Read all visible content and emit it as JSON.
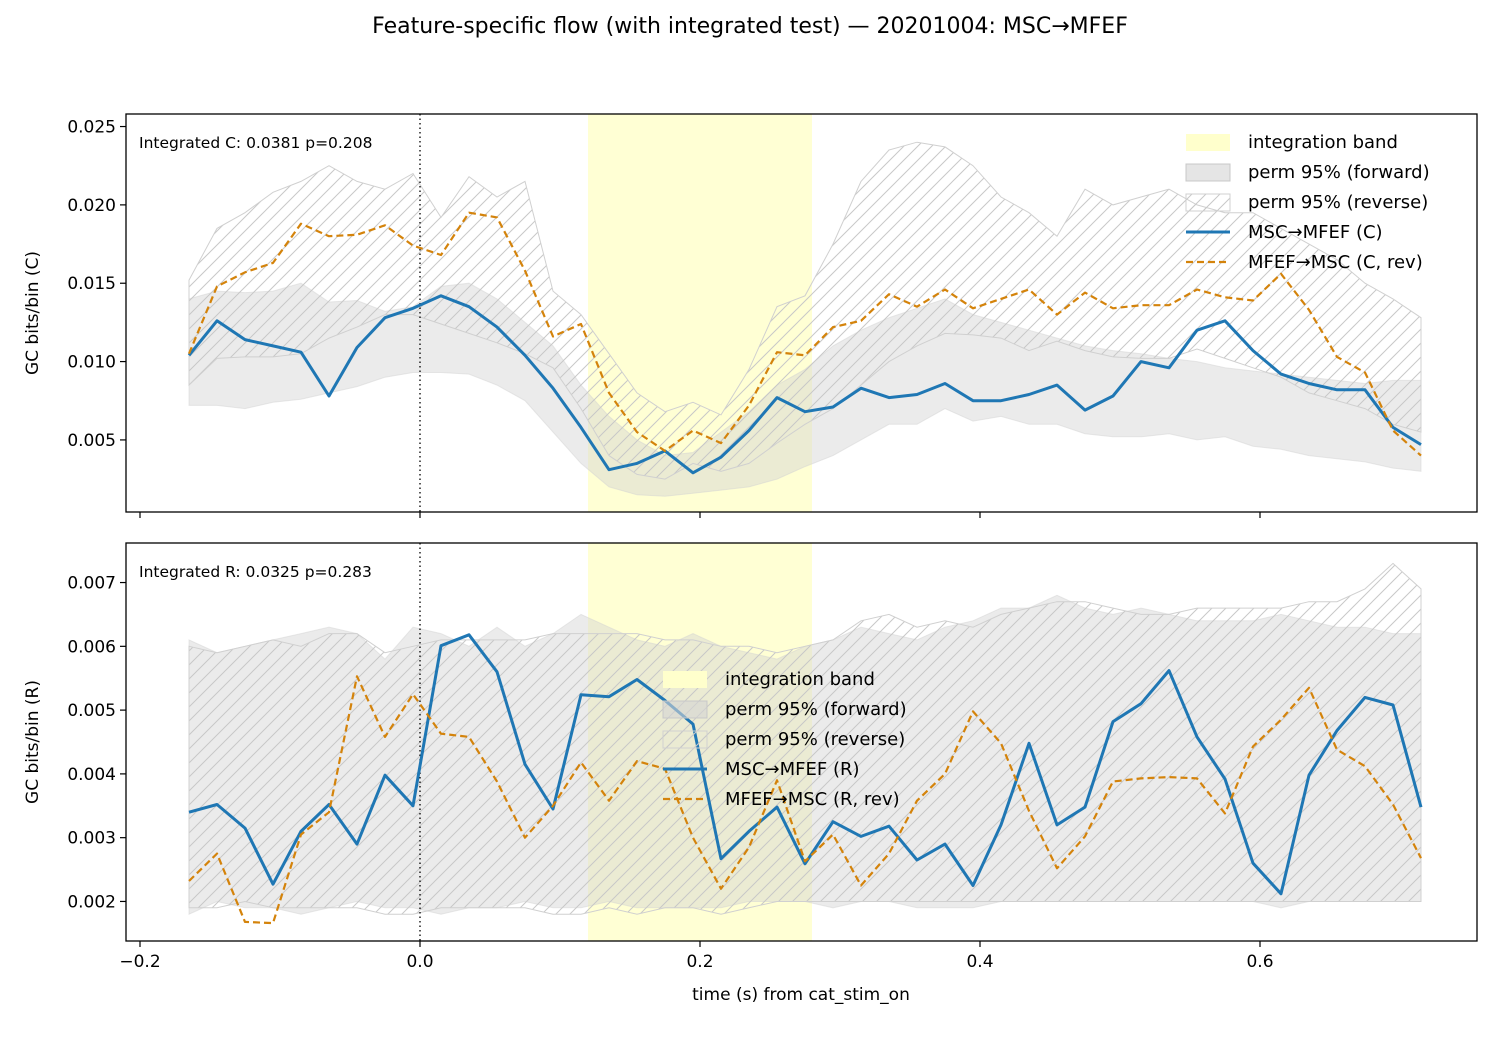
{
  "figure": {
    "title": "Feature-specific flow (with integrated test) — 20201004: MSC→MFEF",
    "xlabel": "time (s) from cat_stim_on"
  },
  "colors": {
    "forward_line": "#1f77b4",
    "reverse_line": "#d4830b",
    "integration_band": "#ffffcc",
    "perm_forward_fill": "#d3d3d3",
    "perm_reverse_hatch": "#c8c8c8"
  },
  "chart_data": [
    {
      "type": "line",
      "ylabel": "GC bits/bin (C)",
      "annotation": "Integrated C: 0.0381  p=0.208",
      "xlim": [
        -0.21,
        0.755
      ],
      "ylim": [
        0.0004,
        0.0258
      ],
      "xticks": [
        -0.2,
        0.0,
        0.2,
        0.4,
        0.6
      ],
      "xtick_labels": [],
      "yticks": [
        0.005,
        0.01,
        0.015,
        0.02,
        0.025
      ],
      "ytick_labels": [
        "0.005",
        "0.010",
        "0.015",
        "0.020",
        "0.025"
      ],
      "event_line_x": 0.0,
      "integration_band": [
        0.12,
        0.28
      ],
      "legend_position": "top-right",
      "legend": [
        "integration band",
        "perm 95% (forward)",
        "perm 95% (reverse)",
        "MSC→MFEF (C)",
        "MFEF→MSC (C, rev)"
      ],
      "x": [
        -0.165,
        -0.145,
        -0.125,
        -0.105,
        -0.085,
        -0.065,
        -0.045,
        -0.025,
        -0.005,
        0.015,
        0.035,
        0.055,
        0.075,
        0.095,
        0.115,
        0.135,
        0.155,
        0.175,
        0.195,
        0.215,
        0.235,
        0.255,
        0.275,
        0.295,
        0.315,
        0.335,
        0.355,
        0.375,
        0.395,
        0.415,
        0.435,
        0.455,
        0.475,
        0.495,
        0.515,
        0.535,
        0.555,
        0.575,
        0.595,
        0.615,
        0.635,
        0.655,
        0.675,
        0.695,
        0.715
      ],
      "series": [
        {
          "name": "MSC→MFEF (C)",
          "values": [
            0.0104,
            0.0126,
            0.0114,
            0.011,
            0.0106,
            0.0078,
            0.0109,
            0.0128,
            0.0134,
            0.0142,
            0.0135,
            0.0122,
            0.0104,
            0.0083,
            0.0058,
            0.0031,
            0.0035,
            0.0043,
            0.0029,
            0.0039,
            0.0056,
            0.0077,
            0.0068,
            0.0071,
            0.0083,
            0.0077,
            0.0079,
            0.0086,
            0.0075,
            0.0075,
            0.0079,
            0.0085,
            0.0069,
            0.0078,
            0.01,
            0.0096,
            0.012,
            0.0126,
            0.0107,
            0.0092,
            0.0086,
            0.0082,
            0.0082,
            0.0058,
            0.0047
          ]
        },
        {
          "name": "MFEF→MSC (C, rev)",
          "values": [
            0.0105,
            0.0148,
            0.0157,
            0.0163,
            0.0188,
            0.018,
            0.0181,
            0.0187,
            0.0174,
            0.0168,
            0.0195,
            0.0192,
            0.0158,
            0.0116,
            0.0124,
            0.008,
            0.0055,
            0.0043,
            0.0056,
            0.0048,
            0.0072,
            0.0106,
            0.0104,
            0.0122,
            0.0126,
            0.0143,
            0.0135,
            0.0146,
            0.0134,
            0.014,
            0.0146,
            0.013,
            0.0144,
            0.0134,
            0.0136,
            0.0136,
            0.0146,
            0.0141,
            0.0139,
            0.0156,
            0.0133,
            0.0103,
            0.0093,
            0.0056,
            0.004
          ]
        }
      ],
      "perm_forward": {
        "lower": [
          0.0072,
          0.0072,
          0.007,
          0.0074,
          0.0076,
          0.008,
          0.0084,
          0.009,
          0.0093,
          0.0093,
          0.0092,
          0.0085,
          0.0075,
          0.0055,
          0.0035,
          0.002,
          0.0015,
          0.0014,
          0.0016,
          0.0018,
          0.002,
          0.0025,
          0.0033,
          0.004,
          0.005,
          0.006,
          0.006,
          0.007,
          0.0062,
          0.0065,
          0.006,
          0.006,
          0.0054,
          0.0052,
          0.0052,
          0.0054,
          0.005,
          0.0052,
          0.0046,
          0.0044,
          0.004,
          0.0038,
          0.0036,
          0.0032,
          0.003
        ],
        "upper": [
          0.014,
          0.0145,
          0.0144,
          0.0145,
          0.015,
          0.0138,
          0.0139,
          0.0132,
          0.0135,
          0.0148,
          0.015,
          0.014,
          0.0125,
          0.011,
          0.0085,
          0.0065,
          0.005,
          0.004,
          0.0042,
          0.0055,
          0.0068,
          0.0085,
          0.0095,
          0.011,
          0.012,
          0.0128,
          0.0134,
          0.014,
          0.013,
          0.0125,
          0.012,
          0.0115,
          0.011,
          0.0107,
          0.0105,
          0.0102,
          0.01,
          0.0096,
          0.0094,
          0.0092,
          0.009,
          0.0088,
          0.0086,
          0.0088,
          0.0088
        ]
      },
      "perm_reverse": {
        "lower": [
          0.0085,
          0.0102,
          0.0103,
          0.0103,
          0.0105,
          0.0115,
          0.0122,
          0.013,
          0.013,
          0.0124,
          0.0118,
          0.0112,
          0.0105,
          0.0096,
          0.007,
          0.004,
          0.0028,
          0.0025,
          0.0035,
          0.003,
          0.0035,
          0.0048,
          0.006,
          0.007,
          0.0085,
          0.01,
          0.011,
          0.0118,
          0.0117,
          0.0115,
          0.0107,
          0.0113,
          0.0107,
          0.0103,
          0.0102,
          0.0102,
          0.0108,
          0.0102,
          0.0096,
          0.009,
          0.008,
          0.0075,
          0.007,
          0.006,
          0.0055
        ],
        "upper": [
          0.0152,
          0.0185,
          0.0195,
          0.0208,
          0.0215,
          0.0225,
          0.0215,
          0.021,
          0.022,
          0.0192,
          0.0218,
          0.0205,
          0.0215,
          0.0145,
          0.013,
          0.0105,
          0.008,
          0.0068,
          0.0074,
          0.0066,
          0.0095,
          0.0135,
          0.0142,
          0.0175,
          0.0215,
          0.0235,
          0.024,
          0.0237,
          0.0225,
          0.0205,
          0.0195,
          0.018,
          0.021,
          0.02,
          0.0205,
          0.021,
          0.02,
          0.0195,
          0.0195,
          0.0185,
          0.0175,
          0.0165,
          0.015,
          0.014,
          0.0128
        ]
      }
    },
    {
      "type": "line",
      "ylabel": "GC bits/bin (R)",
      "annotation": "Integrated R: 0.0325  p=0.283",
      "xlim": [
        -0.21,
        0.755
      ],
      "ylim": [
        0.00138,
        0.00762
      ],
      "xticks": [
        -0.2,
        0.0,
        0.2,
        0.4,
        0.6
      ],
      "xtick_labels": [
        "−0.2",
        "0.0",
        "0.2",
        "0.4",
        "0.6"
      ],
      "yticks": [
        0.002,
        0.003,
        0.004,
        0.005,
        0.006,
        0.007
      ],
      "ytick_labels": [
        "0.002",
        "0.003",
        "0.004",
        "0.005",
        "0.006",
        "0.007"
      ],
      "event_line_x": 0.0,
      "integration_band": [
        0.12,
        0.28
      ],
      "legend_position": "center",
      "legend": [
        "integration band",
        "perm 95% (forward)",
        "perm 95% (reverse)",
        "MSC→MFEF (R)",
        "MFEF→MSC (R, rev)"
      ],
      "x": [
        -0.165,
        -0.145,
        -0.125,
        -0.105,
        -0.085,
        -0.065,
        -0.045,
        -0.025,
        -0.005,
        0.015,
        0.035,
        0.055,
        0.075,
        0.095,
        0.115,
        0.135,
        0.155,
        0.175,
        0.195,
        0.215,
        0.235,
        0.255,
        0.275,
        0.295,
        0.315,
        0.335,
        0.355,
        0.375,
        0.395,
        0.415,
        0.435,
        0.455,
        0.475,
        0.495,
        0.515,
        0.535,
        0.555,
        0.575,
        0.595,
        0.615,
        0.635,
        0.655,
        0.675,
        0.695,
        0.715
      ],
      "series": [
        {
          "name": "MSC→MFEF (R)",
          "values": [
            0.0034,
            0.00352,
            0.00315,
            0.00227,
            0.0031,
            0.00352,
            0.0029,
            0.00398,
            0.0035,
            0.00601,
            0.00618,
            0.0056,
            0.00415,
            0.00345,
            0.00524,
            0.00521,
            0.00548,
            0.00515,
            0.00478,
            0.00267,
            0.0031,
            0.00348,
            0.00259,
            0.00325,
            0.00302,
            0.00318,
            0.00265,
            0.0029,
            0.00225,
            0.0032,
            0.00448,
            0.0032,
            0.00348,
            0.00482,
            0.0051,
            0.00562,
            0.00458,
            0.00392,
            0.0026,
            0.00212,
            0.00398,
            0.00468,
            0.0052,
            0.00508,
            0.00348
          ]
        },
        {
          "name": "MFEF→MSC (R, rev)",
          "values": [
            0.00232,
            0.00275,
            0.00168,
            0.00166,
            0.00305,
            0.0034,
            0.00553,
            0.00458,
            0.00525,
            0.00463,
            0.00458,
            0.00388,
            0.003,
            0.0035,
            0.00418,
            0.00358,
            0.0042,
            0.00408,
            0.003,
            0.0022,
            0.00285,
            0.0039,
            0.00263,
            0.00305,
            0.00225,
            0.00275,
            0.00358,
            0.004,
            0.00498,
            0.00448,
            0.00342,
            0.00252,
            0.00302,
            0.00388,
            0.00393,
            0.00395,
            0.00393,
            0.00338,
            0.00443,
            0.00485,
            0.00535,
            0.00438,
            0.00412,
            0.00352,
            0.00268
          ]
        }
      ],
      "perm_forward": {
        "lower": [
          0.0018,
          0.002,
          0.0019,
          0.0019,
          0.0018,
          0.0019,
          0.002,
          0.0019,
          0.0019,
          0.0018,
          0.0019,
          0.0019,
          0.002,
          0.0019,
          0.0019,
          0.002,
          0.0019,
          0.0019,
          0.0019,
          0.0019,
          0.002,
          0.002,
          0.002,
          0.0019,
          0.002,
          0.002,
          0.0019,
          0.0019,
          0.0019,
          0.002,
          0.002,
          0.002,
          0.002,
          0.002,
          0.002,
          0.002,
          0.002,
          0.002,
          0.002,
          0.0019,
          0.002,
          0.002,
          0.002,
          0.002,
          0.002
        ],
        "upper": [
          0.0061,
          0.0059,
          0.006,
          0.0061,
          0.0062,
          0.0063,
          0.0062,
          0.0058,
          0.0063,
          0.0062,
          0.006,
          0.0063,
          0.006,
          0.0062,
          0.0065,
          0.0063,
          0.0061,
          0.006,
          0.0062,
          0.006,
          0.0059,
          0.0058,
          0.006,
          0.0061,
          0.0063,
          0.0062,
          0.0061,
          0.0063,
          0.0064,
          0.0066,
          0.0066,
          0.0068,
          0.0066,
          0.0065,
          0.0066,
          0.0065,
          0.0064,
          0.0064,
          0.0064,
          0.0065,
          0.0064,
          0.0063,
          0.0063,
          0.0062,
          0.0062
        ]
      },
      "perm_reverse": {
        "lower": [
          0.0019,
          0.0019,
          0.002,
          0.0019,
          0.0019,
          0.0019,
          0.0019,
          0.0018,
          0.0018,
          0.0019,
          0.0019,
          0.0019,
          0.0019,
          0.0018,
          0.0018,
          0.0019,
          0.0018,
          0.0019,
          0.0019,
          0.0018,
          0.0019,
          0.002,
          0.002,
          0.002,
          0.002,
          0.002,
          0.002,
          0.002,
          0.002,
          0.002,
          0.002,
          0.002,
          0.002,
          0.002,
          0.002,
          0.002,
          0.002,
          0.002,
          0.002,
          0.002,
          0.002,
          0.002,
          0.002,
          0.002,
          0.002
        ],
        "upper": [
          0.006,
          0.0059,
          0.006,
          0.0061,
          0.006,
          0.0062,
          0.0062,
          0.0059,
          0.006,
          0.0061,
          0.0061,
          0.0061,
          0.0061,
          0.0062,
          0.0062,
          0.0062,
          0.0062,
          0.0061,
          0.0061,
          0.006,
          0.006,
          0.0059,
          0.006,
          0.0061,
          0.0064,
          0.0065,
          0.0063,
          0.0064,
          0.0063,
          0.0065,
          0.0066,
          0.0067,
          0.0067,
          0.0066,
          0.0065,
          0.0065,
          0.0066,
          0.0066,
          0.0066,
          0.0066,
          0.0067,
          0.0067,
          0.0069,
          0.0073,
          0.0069
        ]
      }
    }
  ]
}
